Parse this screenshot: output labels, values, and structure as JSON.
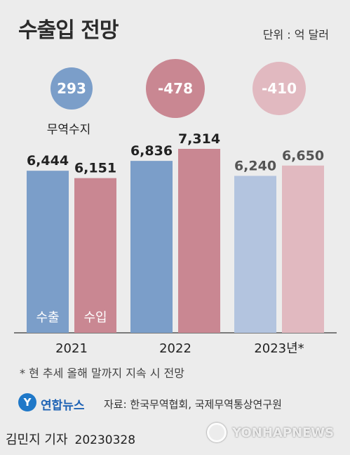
{
  "header": {
    "title": "수출입 전망",
    "unit": "단위 : 억 달러"
  },
  "chart_data": {
    "type": "bar",
    "categories": [
      "2021",
      "2022",
      "2023년*"
    ],
    "series": [
      {
        "name": "수출",
        "values": [
          6444,
          6836,
          6240
        ],
        "labels": [
          "6,444",
          "6,836",
          "6,240"
        ]
      },
      {
        "name": "수입",
        "values": [
          6151,
          7314,
          6650
        ],
        "labels": [
          "6,151",
          "7,314",
          "6,650"
        ]
      }
    ],
    "trade_balance": {
      "label": "무역수지",
      "values": [
        293,
        -478,
        -410
      ],
      "labels": [
        "293",
        "-478",
        "-410"
      ]
    },
    "colors": {
      "export": [
        "#7b9ec9",
        "#7b9ec9",
        "#b3c4df"
      ],
      "import": [
        "#c98792",
        "#c98792",
        "#e1b9c0"
      ],
      "balance": [
        "#7b9ec9",
        "#c98792",
        "#e1b9c0"
      ]
    },
    "ylim": [
      0,
      7314
    ],
    "grid": false
  },
  "footnote": "* 현 추세 올해 말까지 지속 시 전망",
  "logo": {
    "text": "연합뉴스"
  },
  "source": "자료: 한국무역협회, 국제무역통상연구원",
  "byline": {
    "author": "김민지 기자",
    "date": "20230328"
  },
  "watermark": "YONHAPNEWS"
}
